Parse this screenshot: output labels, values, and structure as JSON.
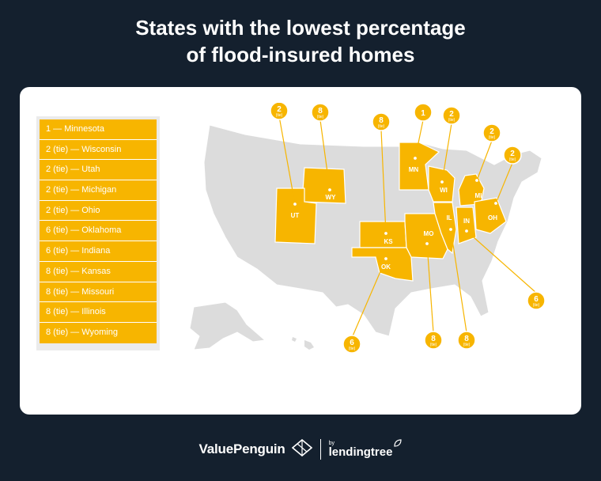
{
  "title_line1": "States with the lowest percentage",
  "title_line2": "of flood-insured homes",
  "legend": [
    "1 — Minnesota",
    "2 (tie) — Wisconsin",
    "2 (tie) — Utah",
    "2 (tie) — Michigan",
    "2 (tie) — Ohio",
    "6 (tie) — Oklahoma",
    "6 (tie) — Indiana",
    "8 (tie) — Kansas",
    "8 (tie) — Missouri",
    "8 (tie) — Illinois",
    "8 (tie) — Wyoming"
  ],
  "states": {
    "MN": {
      "label": "MN",
      "rank": "1",
      "tie": ""
    },
    "WI": {
      "label": "WI",
      "rank": "2",
      "tie": "(tie)"
    },
    "UT": {
      "label": "UT",
      "rank": "2",
      "tie": "(tie)"
    },
    "MI": {
      "label": "MI",
      "rank": "2",
      "tie": "(tie)"
    },
    "OH": {
      "label": "OH",
      "rank": "2",
      "tie": "(tie)"
    },
    "OK": {
      "label": "OK",
      "rank": "6",
      "tie": "(tie)"
    },
    "IN": {
      "label": "IN",
      "rank": "6",
      "tie": "(tie)"
    },
    "KS": {
      "label": "KS",
      "rank": "8",
      "tie": "(tie)"
    },
    "MO": {
      "label": "MO",
      "rank": "8",
      "tie": "(tie)"
    },
    "IL": {
      "label": "IL",
      "rank": "8",
      "tie": "(tie)"
    },
    "WY": {
      "label": "WY",
      "rank": "8",
      "tie": "(tie)"
    }
  },
  "colors": {
    "highlight": "#f7b500",
    "base": "#dcdcdc",
    "background": "#14202e"
  },
  "footer": {
    "brand": "ValuePenguin",
    "by": "by",
    "partner": "lendingtree"
  }
}
